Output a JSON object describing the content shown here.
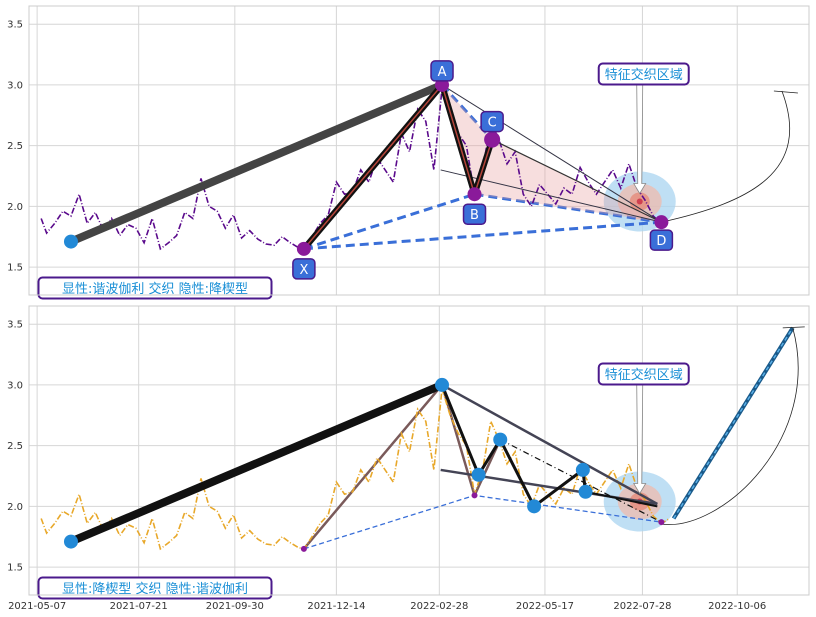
{
  "chart_data": [
    {
      "type": "line",
      "xlim": [
        "2021-05-01",
        "2022-11-28"
      ],
      "ylim": [
        1.27,
        3.65
      ],
      "yticks": [
        1.5,
        2.0,
        2.5,
        3.0,
        3.5
      ],
      "grid": true,
      "series_color": "#5a0a8c",
      "price": [
        [
          "2021-05-10",
          1.9
        ],
        [
          "2021-05-14",
          1.78
        ],
        [
          "2021-05-20",
          1.86
        ],
        [
          "2021-05-26",
          1.96
        ],
        [
          "2021-06-01",
          1.92
        ],
        [
          "2021-06-07",
          2.1
        ],
        [
          "2021-06-13",
          1.86
        ],
        [
          "2021-06-19",
          1.95
        ],
        [
          "2021-06-25",
          1.8
        ],
        [
          "2021-07-01",
          1.9
        ],
        [
          "2021-07-07",
          1.76
        ],
        [
          "2021-07-13",
          1.85
        ],
        [
          "2021-07-19",
          1.82
        ],
        [
          "2021-07-25",
          1.7
        ],
        [
          "2021-07-31",
          1.9
        ],
        [
          "2021-08-06",
          1.65
        ],
        [
          "2021-08-12",
          1.7
        ],
        [
          "2021-08-18",
          1.76
        ],
        [
          "2021-08-24",
          1.95
        ],
        [
          "2021-08-30",
          1.9
        ],
        [
          "2021-09-05",
          2.23
        ],
        [
          "2021-09-11",
          2.0
        ],
        [
          "2021-09-17",
          1.96
        ],
        [
          "2021-09-23",
          1.82
        ],
        [
          "2021-09-29",
          1.93
        ],
        [
          "2021-10-05",
          1.74
        ],
        [
          "2021-10-11",
          1.8
        ],
        [
          "2021-10-17",
          1.73
        ],
        [
          "2021-10-23",
          1.69
        ],
        [
          "2021-10-29",
          1.68
        ],
        [
          "2021-11-04",
          1.75
        ],
        [
          "2021-11-10",
          1.7
        ],
        [
          "2021-11-16",
          1.66
        ],
        [
          "2021-11-20",
          1.65
        ],
        [
          "2021-11-26",
          1.75
        ],
        [
          "2021-12-02",
          1.86
        ],
        [
          "2021-12-08",
          1.93
        ],
        [
          "2021-12-14",
          2.2
        ],
        [
          "2021-12-20",
          2.1
        ],
        [
          "2021-12-26",
          2.12
        ],
        [
          "2022-01-01",
          2.3
        ],
        [
          "2022-01-07",
          2.2
        ],
        [
          "2022-01-13",
          2.4
        ],
        [
          "2022-01-19",
          2.3
        ],
        [
          "2022-01-25",
          2.2
        ],
        [
          "2022-01-31",
          2.6
        ],
        [
          "2022-02-06",
          2.45
        ],
        [
          "2022-02-12",
          2.8
        ],
        [
          "2022-02-18",
          2.7
        ],
        [
          "2022-02-24",
          2.3
        ],
        [
          "2022-03-02",
          2.97
        ],
        [
          "2022-03-08",
          2.75
        ],
        [
          "2022-03-14",
          2.6
        ],
        [
          "2022-03-20",
          2.5
        ],
        [
          "2022-03-26",
          2.1
        ],
        [
          "2022-04-01",
          2.3
        ],
        [
          "2022-04-07",
          2.7
        ],
        [
          "2022-04-13",
          2.55
        ],
        [
          "2022-04-19",
          2.35
        ],
        [
          "2022-04-25",
          2.45
        ],
        [
          "2022-05-01",
          2.1
        ],
        [
          "2022-05-07",
          2.0
        ],
        [
          "2022-05-13",
          2.18
        ],
        [
          "2022-05-19",
          2.1
        ],
        [
          "2022-05-25",
          2.02
        ],
        [
          "2022-05-31",
          2.15
        ],
        [
          "2022-06-06",
          2.1
        ],
        [
          "2022-06-12",
          2.32
        ],
        [
          "2022-06-18",
          2.2
        ],
        [
          "2022-06-24",
          2.1
        ],
        [
          "2022-06-30",
          2.2
        ],
        [
          "2022-07-06",
          2.3
        ],
        [
          "2022-07-12",
          2.15
        ],
        [
          "2022-07-18",
          2.35
        ],
        [
          "2022-07-24",
          2.15
        ],
        [
          "2022-07-30",
          2.05
        ],
        [
          "2022-08-05",
          1.92
        ],
        [
          "2022-08-11",
          1.86
        ]
      ],
      "pattern_points": [
        {
          "label": "X",
          "date": "2021-11-20",
          "value": 1.65
        },
        {
          "label": "A",
          "date": "2022-03-02",
          "value": 3.0
        },
        {
          "label": "B",
          "date": "2022-03-26",
          "value": 2.1
        },
        {
          "label": "C",
          "date": "2022-04-08",
          "value": 2.55
        },
        {
          "label": "D",
          "date": "2022-08-11",
          "value": 1.87
        }
      ],
      "markers": [
        {
          "date": "2021-06-01",
          "value": 1.71
        }
      ],
      "feature_zone": {
        "date": "2022-07-26",
        "value": 2.04
      },
      "annotation": "特征交织区域",
      "caption": "显性:谐波伽利 交织 隐性:降楔型"
    },
    {
      "type": "line",
      "xlim": [
        "2021-05-01",
        "2022-11-28"
      ],
      "ylim": [
        1.27,
        3.65
      ],
      "xticks": [
        "2021-05-07",
        "2021-07-21",
        "2021-09-30",
        "2021-12-14",
        "2022-02-28",
        "2022-05-17",
        "2022-07-28",
        "2022-10-06"
      ],
      "yticks": [
        1.5,
        2.0,
        2.5,
        3.0,
        3.5
      ],
      "grid": true,
      "series_color": "#e8a82a",
      "price": [
        [
          "2021-05-10",
          1.9
        ],
        [
          "2021-05-14",
          1.78
        ],
        [
          "2021-05-20",
          1.86
        ],
        [
          "2021-05-26",
          1.96
        ],
        [
          "2021-06-01",
          1.92
        ],
        [
          "2021-06-07",
          2.1
        ],
        [
          "2021-06-13",
          1.86
        ],
        [
          "2021-06-19",
          1.95
        ],
        [
          "2021-06-25",
          1.8
        ],
        [
          "2021-07-01",
          1.9
        ],
        [
          "2021-07-07",
          1.76
        ],
        [
          "2021-07-13",
          1.85
        ],
        [
          "2021-07-19",
          1.82
        ],
        [
          "2021-07-25",
          1.7
        ],
        [
          "2021-07-31",
          1.9
        ],
        [
          "2021-08-06",
          1.65
        ],
        [
          "2021-08-12",
          1.7
        ],
        [
          "2021-08-18",
          1.76
        ],
        [
          "2021-08-24",
          1.95
        ],
        [
          "2021-08-30",
          1.9
        ],
        [
          "2021-09-05",
          2.23
        ],
        [
          "2021-09-11",
          2.0
        ],
        [
          "2021-09-17",
          1.96
        ],
        [
          "2021-09-23",
          1.82
        ],
        [
          "2021-09-29",
          1.93
        ],
        [
          "2021-10-05",
          1.74
        ],
        [
          "2021-10-11",
          1.8
        ],
        [
          "2021-10-17",
          1.73
        ],
        [
          "2021-10-23",
          1.69
        ],
        [
          "2021-10-29",
          1.68
        ],
        [
          "2021-11-04",
          1.75
        ],
        [
          "2021-11-10",
          1.7
        ],
        [
          "2021-11-16",
          1.66
        ],
        [
          "2021-11-20",
          1.65
        ],
        [
          "2021-11-26",
          1.75
        ],
        [
          "2021-12-02",
          1.86
        ],
        [
          "2021-12-08",
          1.93
        ],
        [
          "2021-12-14",
          2.2
        ],
        [
          "2021-12-20",
          2.1
        ],
        [
          "2021-12-26",
          2.12
        ],
        [
          "2022-01-01",
          2.3
        ],
        [
          "2022-01-07",
          2.2
        ],
        [
          "2022-01-13",
          2.4
        ],
        [
          "2022-01-19",
          2.3
        ],
        [
          "2022-01-25",
          2.2
        ],
        [
          "2022-01-31",
          2.6
        ],
        [
          "2022-02-06",
          2.45
        ],
        [
          "2022-02-12",
          2.8
        ],
        [
          "2022-02-18",
          2.7
        ],
        [
          "2022-02-24",
          2.3
        ],
        [
          "2022-03-02",
          2.97
        ],
        [
          "2022-03-08",
          2.75
        ],
        [
          "2022-03-14",
          2.6
        ],
        [
          "2022-03-20",
          2.5
        ],
        [
          "2022-03-26",
          2.1
        ],
        [
          "2022-04-01",
          2.3
        ],
        [
          "2022-04-07",
          2.7
        ],
        [
          "2022-04-13",
          2.55
        ],
        [
          "2022-04-19",
          2.35
        ],
        [
          "2022-04-25",
          2.45
        ],
        [
          "2022-05-01",
          2.1
        ],
        [
          "2022-05-07",
          2.0
        ],
        [
          "2022-05-13",
          2.18
        ],
        [
          "2022-05-19",
          2.1
        ],
        [
          "2022-05-25",
          2.02
        ],
        [
          "2022-05-31",
          2.15
        ],
        [
          "2022-06-06",
          2.1
        ],
        [
          "2022-06-12",
          2.32
        ],
        [
          "2022-06-18",
          2.2
        ],
        [
          "2022-06-24",
          2.1
        ],
        [
          "2022-06-30",
          2.2
        ],
        [
          "2022-07-06",
          2.3
        ],
        [
          "2022-07-12",
          2.15
        ],
        [
          "2022-07-18",
          2.35
        ],
        [
          "2022-07-24",
          2.15
        ],
        [
          "2022-07-30",
          2.05
        ],
        [
          "2022-08-05",
          1.92
        ],
        [
          "2022-08-11",
          1.86
        ],
        [
          "2022-08-17",
          1.9
        ]
      ],
      "wedge_points": [
        {
          "date": "2022-03-02",
          "value": 3.0
        },
        {
          "date": "2022-03-29",
          "value": 2.26
        },
        {
          "date": "2022-04-14",
          "value": 2.55
        },
        {
          "date": "2022-05-09",
          "value": 2.0
        },
        {
          "date": "2022-06-14",
          "value": 2.3
        },
        {
          "date": "2022-06-16",
          "value": 2.12
        }
      ],
      "markers": [
        {
          "date": "2021-06-01",
          "value": 1.71
        }
      ],
      "projection": {
        "from": {
          "date": "2022-08-20",
          "value": 1.9
        },
        "to": {
          "date": "2022-11-16",
          "value": 3.47
        }
      },
      "feature_zone": {
        "date": "2022-07-26",
        "value": 2.04
      },
      "annotation": "特征交织区域",
      "caption": "显性:降楔型 交织 隐性:谐波伽利"
    }
  ]
}
